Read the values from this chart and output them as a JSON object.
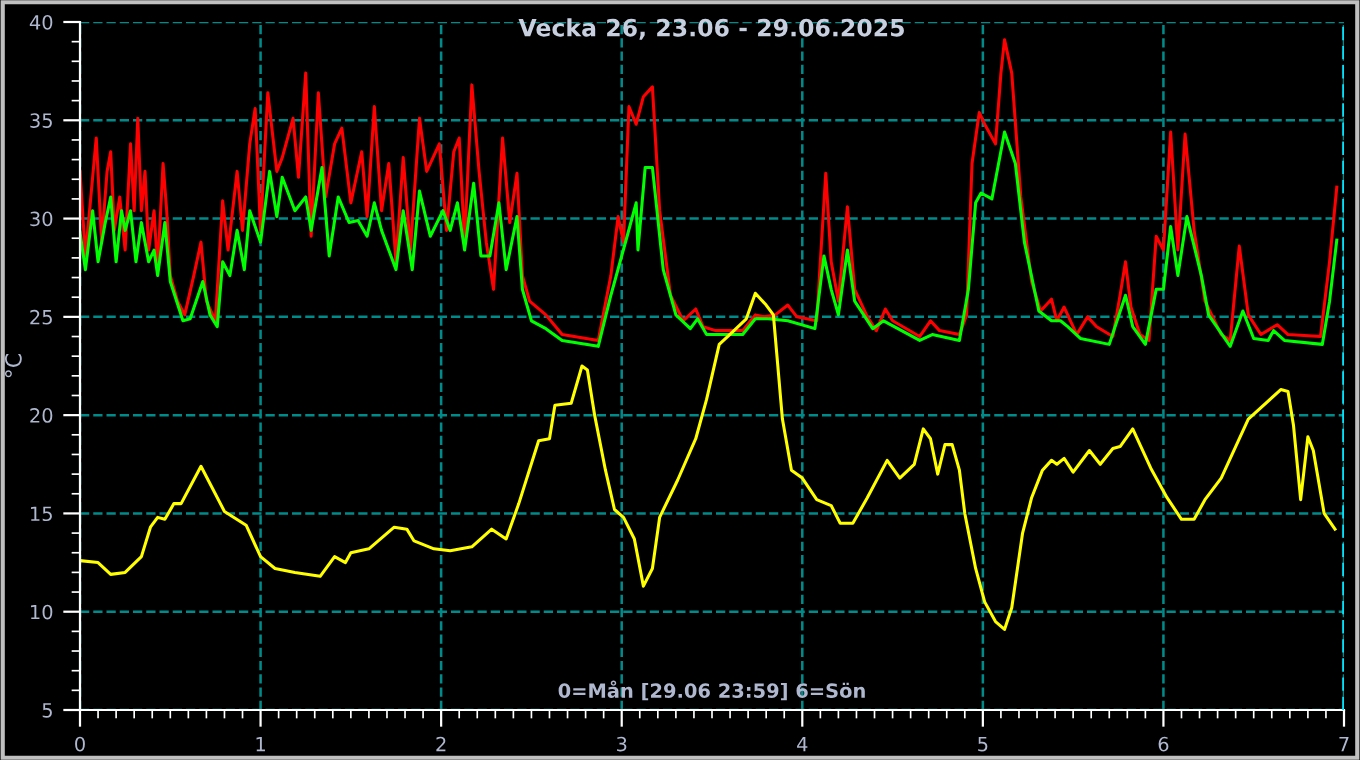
{
  "chart_data": {
    "type": "line",
    "title": "Vecka 26, 23.06 - 29.06.2025",
    "ylabel": "°C",
    "annotations": [
      "0=Mån [29.06 23:59] 6=Sön"
    ],
    "xlim": [
      0,
      7
    ],
    "xticks": [
      0,
      1,
      2,
      3,
      4,
      5,
      6,
      7
    ],
    "ylim": [
      5,
      40
    ],
    "yticks": [
      5,
      10,
      15,
      20,
      25,
      30,
      35,
      40
    ],
    "grid": true,
    "marker": "none",
    "line_style": "solid",
    "ref_lines": [
      {
        "axis": "x",
        "value": 7,
        "color": "#00e5ff",
        "line_style": "dashed"
      }
    ],
    "series": [
      {
        "color": "#ff0000",
        "x": [
          0,
          0.03,
          0.06,
          0.09,
          0.12,
          0.15,
          0.17,
          0.19,
          0.22,
          0.25,
          0.28,
          0.3,
          0.32,
          0.34,
          0.36,
          0.38,
          0.41,
          0.43,
          0.46,
          0.48,
          0.5,
          0.54,
          0.58,
          0.63,
          0.67,
          0.7,
          0.75,
          0.79,
          0.82,
          0.87,
          0.9,
          0.94,
          0.97,
          1.0,
          1.04,
          1.09,
          1.12,
          1.18,
          1.21,
          1.25,
          1.28,
          1.32,
          1.36,
          1.41,
          1.45,
          1.5,
          1.56,
          1.59,
          1.63,
          1.67,
          1.71,
          1.75,
          1.79,
          1.83,
          1.88,
          1.92,
          1.99,
          2.03,
          2.07,
          2.1,
          2.13,
          2.17,
          2.21,
          2.25,
          2.29,
          2.34,
          2.38,
          2.42,
          2.45,
          2.49,
          2.58,
          2.67,
          2.87,
          2.94,
          2.98,
          3.01,
          3.04,
          3.08,
          3.12,
          3.17,
          3.21,
          3.27,
          3.34,
          3.41,
          3.45,
          3.52,
          3.67,
          3.74,
          3.79,
          3.85,
          3.92,
          3.97,
          4.08,
          4.13,
          4.16,
          4.2,
          4.25,
          4.29,
          4.36,
          4.41,
          4.46,
          4.5,
          4.65,
          4.71,
          4.76,
          4.87,
          4.91,
          4.94,
          4.98,
          5.01,
          5.07,
          5.1,
          5.12,
          5.16,
          5.21,
          5.27,
          5.32,
          5.38,
          5.41,
          5.45,
          5.52,
          5.58,
          5.63,
          5.72,
          5.76,
          5.79,
          5.82,
          5.87,
          5.92,
          5.96,
          6.0,
          6.04,
          6.08,
          6.12,
          6.17,
          6.23,
          6.32,
          6.37,
          6.42,
          6.47,
          6.54,
          6.63,
          6.69,
          6.87,
          6.92,
          6.96
        ],
        "values": [
          32.4,
          28.1,
          31.1,
          34.1,
          28.8,
          32.4,
          33.4,
          29.4,
          31.1,
          28.4,
          33.8,
          30.4,
          35.1,
          30.4,
          32.4,
          28.4,
          30.4,
          27.4,
          32.8,
          30.4,
          27.1,
          25.8,
          25.1,
          27.1,
          28.8,
          25.8,
          24.8,
          30.9,
          28.4,
          32.4,
          29.4,
          33.8,
          35.6,
          29.4,
          36.4,
          32.4,
          33.1,
          35.1,
          32.1,
          37.4,
          29.1,
          36.4,
          31.1,
          33.8,
          34.6,
          30.8,
          33.4,
          30.1,
          35.7,
          30.4,
          32.8,
          27.8,
          33.1,
          28.4,
          35.1,
          32.4,
          33.8,
          29.4,
          33.4,
          34.1,
          28.8,
          36.8,
          32.4,
          28.8,
          26.4,
          34.1,
          29.8,
          32.3,
          27.1,
          25.8,
          25.1,
          24.1,
          23.8,
          27.1,
          30.1,
          28.8,
          35.7,
          34.8,
          36.2,
          36.7,
          30.4,
          26.1,
          24.8,
          25.4,
          24.5,
          24.3,
          24.3,
          25.1,
          25.0,
          25.1,
          25.6,
          25.0,
          24.8,
          32.3,
          27.8,
          25.8,
          30.6,
          26.4,
          25.0,
          24.3,
          25.4,
          24.8,
          24.0,
          24.8,
          24.3,
          24.1,
          25.1,
          32.8,
          35.4,
          34.8,
          33.8,
          37.4,
          39.1,
          37.4,
          31.1,
          26.8,
          25.3,
          25.9,
          24.8,
          25.5,
          24.1,
          25.0,
          24.5,
          24.0,
          26.1,
          27.8,
          25.5,
          24.1,
          23.8,
          29.1,
          28.4,
          34.4,
          28.4,
          34.3,
          29.4,
          25.8,
          24.1,
          23.8,
          28.6,
          25.1,
          24.1,
          24.6,
          24.1,
          24.0,
          27.8,
          31.6
        ]
      },
      {
        "color": "#00ff00",
        "x": [
          0,
          0.03,
          0.07,
          0.1,
          0.14,
          0.17,
          0.2,
          0.23,
          0.25,
          0.28,
          0.31,
          0.34,
          0.38,
          0.41,
          0.43,
          0.47,
          0.5,
          0.57,
          0.61,
          0.68,
          0.72,
          0.76,
          0.79,
          0.83,
          0.87,
          0.91,
          0.94,
          1.0,
          1.05,
          1.09,
          1.12,
          1.19,
          1.25,
          1.28,
          1.34,
          1.38,
          1.43,
          1.49,
          1.54,
          1.59,
          1.63,
          1.67,
          1.75,
          1.79,
          1.84,
          1.88,
          1.94,
          2.01,
          2.05,
          2.09,
          2.13,
          2.18,
          2.22,
          2.27,
          2.32,
          2.36,
          2.42,
          2.45,
          2.5,
          2.58,
          2.67,
          2.87,
          2.94,
          3.03,
          3.08,
          3.09,
          3.13,
          3.17,
          3.23,
          3.3,
          3.38,
          3.42,
          3.47,
          3.67,
          3.74,
          3.81,
          3.92,
          4.07,
          4.12,
          4.16,
          4.2,
          4.25,
          4.29,
          4.39,
          4.45,
          4.65,
          4.72,
          4.87,
          4.92,
          4.96,
          4.99,
          5.05,
          5.12,
          5.18,
          5.23,
          5.31,
          5.38,
          5.43,
          5.47,
          5.54,
          5.7,
          5.79,
          5.83,
          5.9,
          5.96,
          6.0,
          6.04,
          6.08,
          6.13,
          6.21,
          6.25,
          6.37,
          6.44,
          6.5,
          6.58,
          6.61,
          6.67,
          6.88,
          6.92,
          6.96
        ],
        "values": [
          29.3,
          27.4,
          30.4,
          27.8,
          29.8,
          31.1,
          27.8,
          30.4,
          29.4,
          30.4,
          27.8,
          29.8,
          27.8,
          28.4,
          27.1,
          29.8,
          26.8,
          24.8,
          24.9,
          26.8,
          25.1,
          24.5,
          27.8,
          27.1,
          29.4,
          27.4,
          30.4,
          28.8,
          32.4,
          30.1,
          32.1,
          30.4,
          31.1,
          29.4,
          32.6,
          28.1,
          31.1,
          29.8,
          29.9,
          29.1,
          30.8,
          29.4,
          27.4,
          30.4,
          27.4,
          31.4,
          29.1,
          30.4,
          29.4,
          30.8,
          28.4,
          31.8,
          28.1,
          28.1,
          30.8,
          27.4,
          30.1,
          26.4,
          24.8,
          24.4,
          23.8,
          23.5,
          26.1,
          29.1,
          30.8,
          28.4,
          32.6,
          32.6,
          27.4,
          25.1,
          24.4,
          24.9,
          24.1,
          24.1,
          24.9,
          24.9,
          24.8,
          24.4,
          28.1,
          26.4,
          25.1,
          28.4,
          25.8,
          24.4,
          24.8,
          23.8,
          24.1,
          23.8,
          26.4,
          30.8,
          31.3,
          31.0,
          34.4,
          32.8,
          28.8,
          25.3,
          24.8,
          24.8,
          24.5,
          23.9,
          23.6,
          26.1,
          24.5,
          23.6,
          26.4,
          26.4,
          29.6,
          27.1,
          30.1,
          27.1,
          25.1,
          23.5,
          25.3,
          23.9,
          23.8,
          24.3,
          23.8,
          23.6,
          25.8,
          28.9
        ]
      },
      {
        "color": "#ffff00",
        "x": [
          0,
          0.1,
          0.17,
          0.25,
          0.34,
          0.39,
          0.43,
          0.47,
          0.52,
          0.56,
          0.67,
          0.8,
          0.92,
          1.0,
          1.08,
          1.19,
          1.33,
          1.41,
          1.47,
          1.5,
          1.6,
          1.74,
          1.81,
          1.85,
          1.96,
          2.05,
          2.17,
          2.28,
          2.36,
          2.43,
          2.54,
          2.6,
          2.63,
          2.72,
          2.78,
          2.81,
          2.85,
          2.91,
          2.96,
          3.01,
          3.07,
          3.12,
          3.17,
          3.21,
          3.31,
          3.41,
          3.47,
          3.54,
          3.61,
          3.69,
          3.74,
          3.8,
          3.84,
          3.89,
          3.94,
          4.0,
          4.08,
          4.16,
          4.21,
          4.28,
          4.36,
          4.47,
          4.54,
          4.62,
          4.67,
          4.71,
          4.75,
          4.79,
          4.83,
          4.87,
          4.9,
          4.96,
          5.01,
          5.07,
          5.12,
          5.16,
          5.22,
          5.27,
          5.33,
          5.38,
          5.41,
          5.45,
          5.5,
          5.59,
          5.65,
          5.72,
          5.76,
          5.83,
          5.93,
          6.02,
          6.1,
          6.17,
          6.23,
          6.32,
          6.47,
          6.65,
          6.69,
          6.72,
          6.76,
          6.8,
          6.83,
          6.89,
          6.95
        ],
        "values": [
          12.6,
          12.5,
          11.9,
          12.0,
          12.8,
          14.3,
          14.8,
          14.7,
          15.5,
          15.5,
          17.4,
          15.1,
          14.4,
          12.8,
          12.2,
          12.0,
          11.8,
          12.8,
          12.5,
          13.0,
          13.2,
          14.3,
          14.2,
          13.6,
          13.2,
          13.1,
          13.3,
          14.2,
          13.7,
          15.5,
          18.7,
          18.8,
          20.5,
          20.6,
          22.5,
          22.3,
          20.0,
          17.2,
          15.2,
          14.8,
          13.7,
          11.3,
          12.2,
          14.8,
          16.7,
          18.8,
          20.8,
          23.6,
          24.2,
          24.9,
          26.2,
          25.6,
          25.1,
          19.8,
          17.2,
          16.8,
          15.7,
          15.4,
          14.5,
          14.5,
          15.8,
          17.7,
          16.8,
          17.5,
          19.3,
          18.8,
          17.0,
          18.5,
          18.5,
          17.2,
          15.0,
          12.2,
          10.5,
          9.5,
          9.1,
          10.2,
          14.0,
          15.8,
          17.2,
          17.7,
          17.5,
          17.8,
          17.1,
          18.2,
          17.5,
          18.3,
          18.4,
          19.3,
          17.3,
          15.8,
          14.7,
          14.7,
          15.7,
          16.8,
          19.8,
          21.3,
          21.2,
          19.5,
          15.7,
          18.9,
          18.2,
          15.0,
          14.2
        ]
      }
    ]
  }
}
